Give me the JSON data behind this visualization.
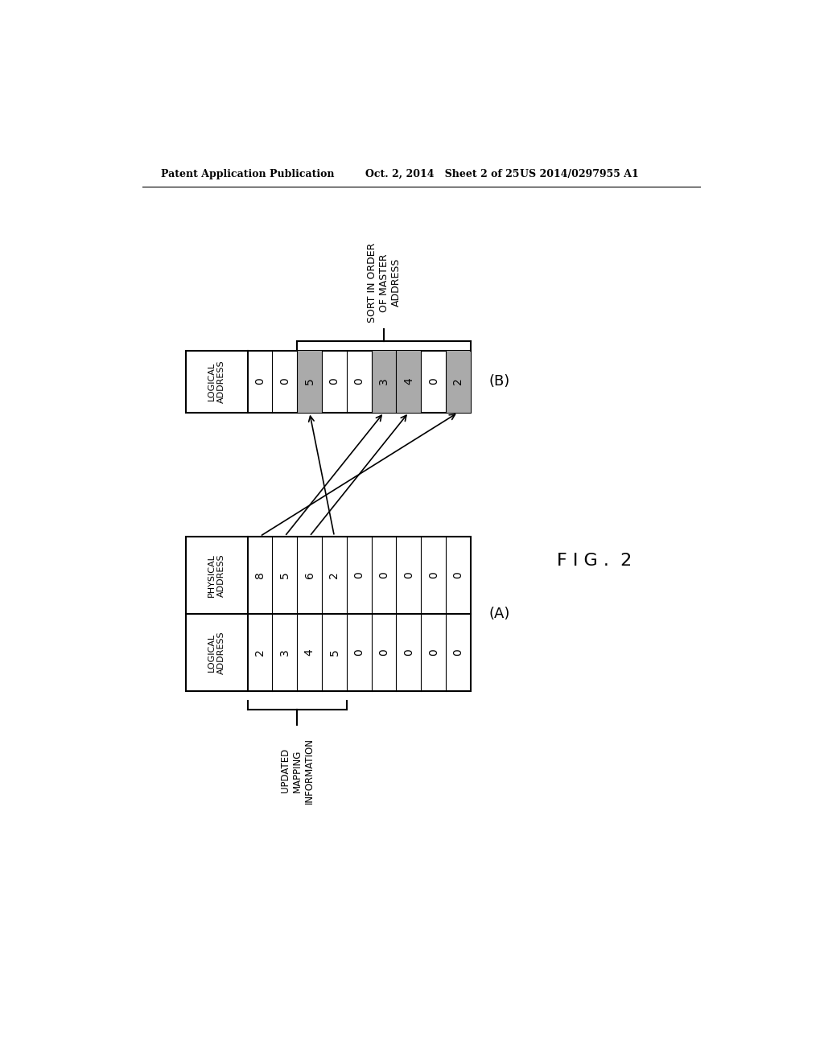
{
  "header_left": "Patent Application Publication",
  "header_mid": "Oct. 2, 2014   Sheet 2 of 25",
  "header_right": "US 2014/0297955 A1",
  "fig_label": "F I G .  2",
  "table_A_label": "(A)",
  "table_B_label": "(B)",
  "table_A_physical": [
    "8",
    "5",
    "6",
    "2",
    "0",
    "0",
    "0",
    "0",
    "0"
  ],
  "table_A_logical": [
    "2",
    "3",
    "4",
    "5",
    "0",
    "0",
    "0",
    "0",
    "0"
  ],
  "table_A_phys_header": "PHYSICAL\nADDRESS",
  "table_A_log_header": "LOGICAL\nADDRESS",
  "table_B_values": [
    "0",
    "0",
    "5",
    "0",
    "0",
    "3",
    "4",
    "0",
    "2"
  ],
  "table_B_log_header": "LOGICAL\nADDRESS",
  "table_B_shaded_indices": [
    2,
    5,
    6,
    8
  ],
  "updated_mapping_label": "UPDATED\nMAPPING\nINFORMATION",
  "sort_label": "SORT IN ORDER\nOF MASTER\nADDRESS",
  "shaded_color": "#aaaaaa",
  "background_color": "#ffffff",
  "n_data_cols": 9,
  "arrow_mappings": [
    {
      "from_col": 2,
      "to_col": 3
    },
    {
      "from_col": 5,
      "to_col": 1
    },
    {
      "from_col": 6,
      "to_col": 2
    },
    {
      "from_col": 8,
      "to_col": 0
    }
  ]
}
